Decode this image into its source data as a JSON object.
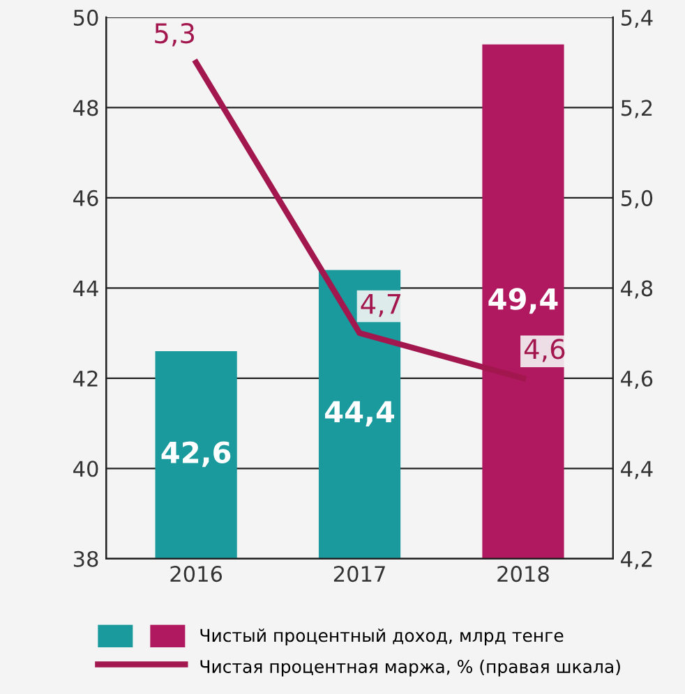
{
  "chart_data": {
    "type": "bar",
    "categories": [
      "2016",
      "2017",
      "2018"
    ],
    "series": [
      {
        "name": "Чистый процентный доход, млрд тенге",
        "colors": [
          "#1a9a9c",
          "#1a9a9c",
          "#b0195f"
        ],
        "values": [
          42.6,
          44.4,
          49.4
        ],
        "value_labels": [
          "42,6",
          "44,4",
          "49,4"
        ]
      },
      {
        "type": "line",
        "axis": "y2",
        "name": "Чистая процентная маржа, % (правая шкала)",
        "color": "#a3174f",
        "values": [
          5.3,
          4.7,
          4.6
        ],
        "value_labels": [
          "5,3",
          "4,7",
          "4,6"
        ]
      }
    ],
    "ylim": [
      38,
      50
    ],
    "yticks": [
      38,
      40,
      42,
      44,
      46,
      48,
      50
    ],
    "y2lim": [
      4.2,
      5.4
    ],
    "y2ticks": [
      {
        "value": 4.2,
        "label": "4,2"
      },
      {
        "value": 4.4,
        "label": "4,4"
      },
      {
        "value": 4.6,
        "label": "4,6"
      },
      {
        "value": 4.8,
        "label": "4,8"
      },
      {
        "value": 5.0,
        "label": "5,0"
      },
      {
        "value": 5.2,
        "label": "5,2"
      },
      {
        "value": 5.4,
        "label": "5,4"
      }
    ],
    "grid": "y",
    "legend": "bottom",
    "marker": "none",
    "line_style": "solid"
  }
}
